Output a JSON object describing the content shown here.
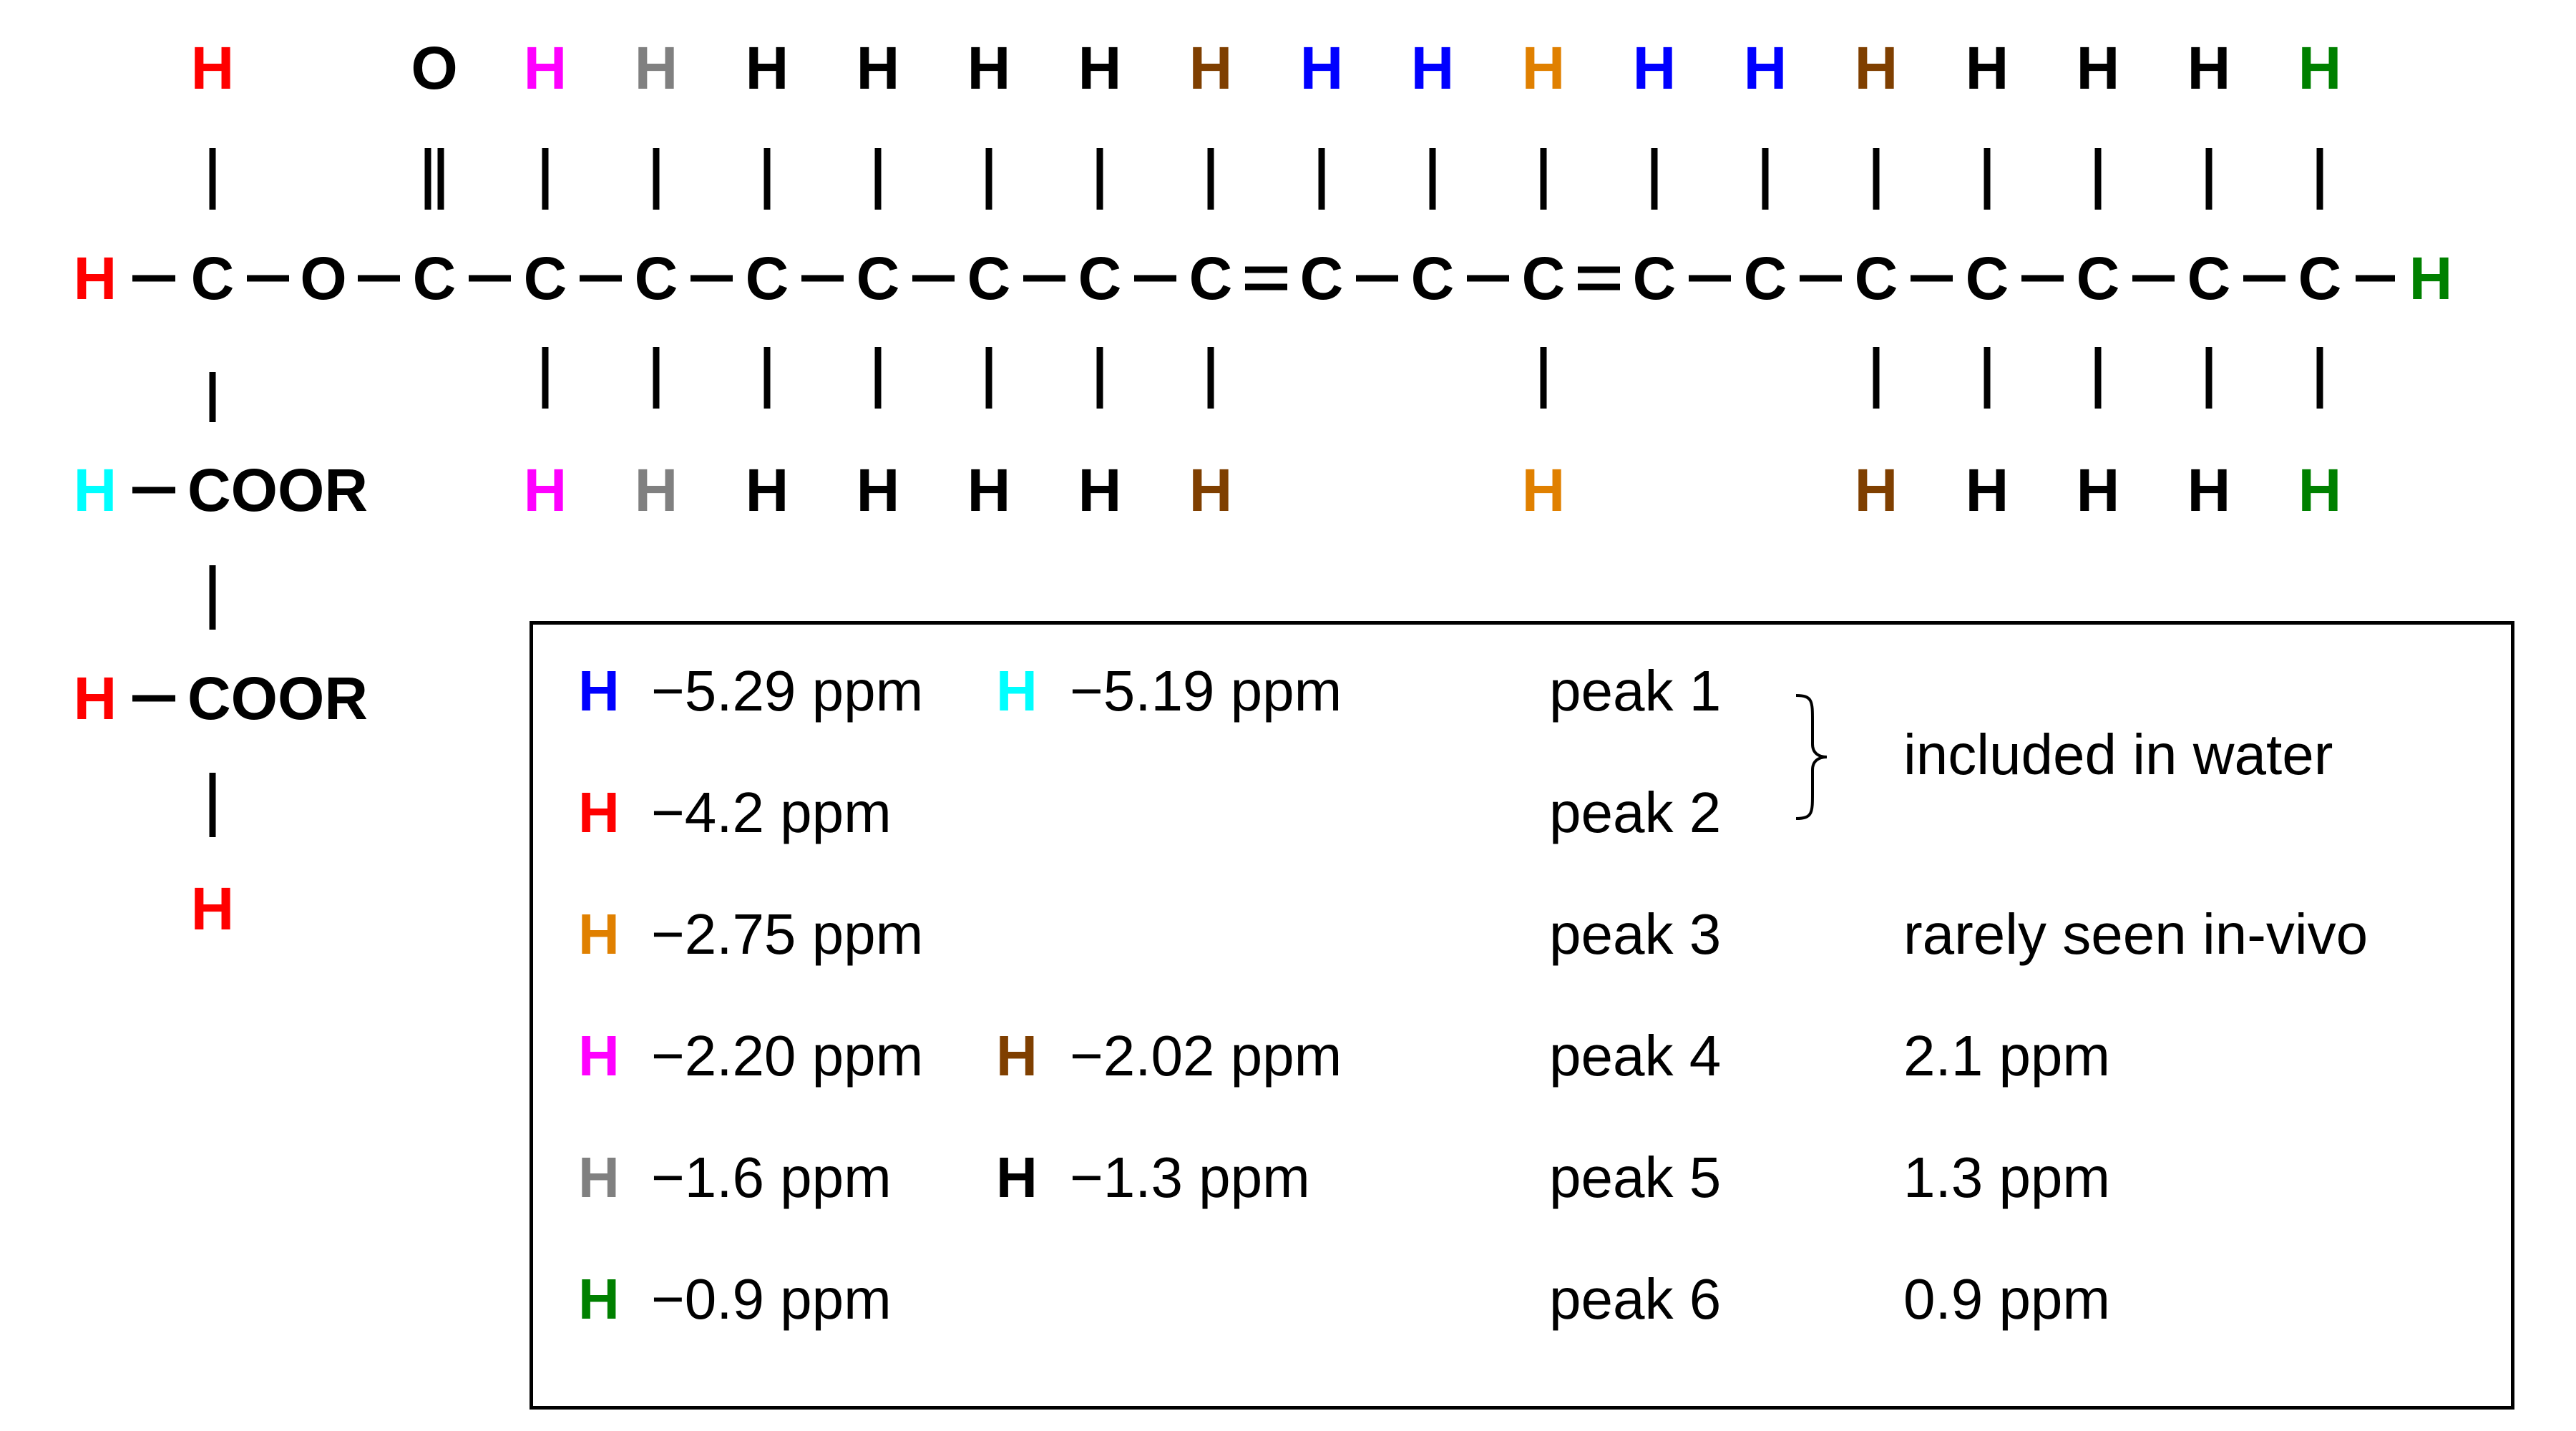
{
  "colors": {
    "red": "#ff0000",
    "black": "#000000",
    "magenta": "#ff00ff",
    "gray": "#808080",
    "brown": "#7f3f00",
    "blue": "#0000ff",
    "orange": "#e08000",
    "green": "#008000",
    "cyan": "#00ffff"
  },
  "molecule": {
    "backbone": [
      "C",
      "O",
      "C",
      "C",
      "C",
      "C",
      "C",
      "C",
      "C",
      "C",
      "C",
      "C",
      "C",
      "C",
      "C",
      "C",
      "C",
      "C",
      "C",
      "C"
    ],
    "double_bonds_after_index": [
      9,
      12
    ],
    "carbonyl_atom": "O",
    "top_h_colors": [
      "red",
      null,
      null,
      "magenta",
      "gray",
      "black",
      "black",
      "black",
      "black",
      "brown",
      "blue",
      "blue",
      "orange",
      "blue",
      "blue",
      "brown",
      "black",
      "black",
      "black",
      "green"
    ],
    "bottom_h_colors": [
      null,
      null,
      null,
      "magenta",
      "gray",
      "black",
      "black",
      "black",
      "black",
      "brown",
      null,
      null,
      "orange",
      null,
      null,
      "brown",
      "black",
      "black",
      "black",
      "green"
    ],
    "left_h": {
      "label": "H",
      "color": "red"
    },
    "right_h": {
      "label": "H",
      "color": "green"
    },
    "h_label": "H",
    "glycerol": [
      {
        "h_color": "cyan",
        "group": "COOR"
      },
      {
        "h_color": "red",
        "group": "COOR"
      }
    ],
    "bottom_h": {
      "label": "H",
      "color": "red"
    }
  },
  "legend": {
    "rows": [
      {
        "h1_color": "blue",
        "shift1": "−5.29 ppm",
        "h2_color": "cyan",
        "shift2": "−5.19 ppm",
        "peak": "peak 1",
        "note": ""
      },
      {
        "h1_color": "red",
        "shift1": "−4.2 ppm",
        "h2_color": null,
        "shift2": "",
        "peak": "peak 2",
        "note": ""
      },
      {
        "h1_color": "orange",
        "shift1": "−2.75 ppm",
        "h2_color": null,
        "shift2": "",
        "peak": "peak 3",
        "note": "rarely seen in-vivo"
      },
      {
        "h1_color": "magenta",
        "shift1": "−2.20 ppm",
        "h2_color": "brown",
        "shift2": "−2.02 ppm",
        "peak": "peak 4",
        "note": "2.1 ppm"
      },
      {
        "h1_color": "gray",
        "shift1": "−1.6 ppm",
        "h2_color": "black",
        "shift2": "−1.3 ppm",
        "peak": "peak 5",
        "note": "1.3 ppm"
      },
      {
        "h1_color": "green",
        "shift1": "−0.9 ppm",
        "h2_color": null,
        "shift2": "",
        "peak": "peak 6",
        "note": "0.9 ppm"
      }
    ],
    "brace_note": "included in water"
  }
}
